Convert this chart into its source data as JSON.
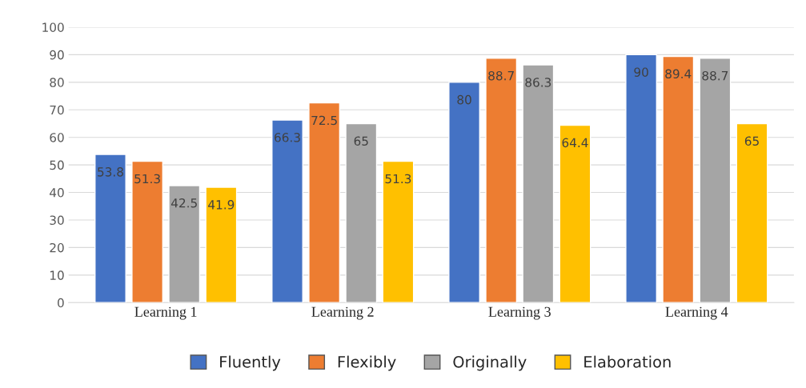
{
  "chart_data": {
    "type": "bar",
    "categories": [
      "Learning 1",
      "Learning 2",
      "Learning 3",
      "Learning 4"
    ],
    "series": [
      {
        "name": "Fluently",
        "color": "#4472c4",
        "values": [
          53.8,
          66.3,
          80,
          90
        ]
      },
      {
        "name": "Flexibly",
        "color": "#ed7d31",
        "values": [
          51.3,
          72.5,
          88.7,
          89.4
        ]
      },
      {
        "name": "Originally",
        "color": "#a5a5a5",
        "values": [
          42.5,
          65,
          86.3,
          88.7
        ]
      },
      {
        "name": "Elaboration",
        "color": "#ffc000",
        "values": [
          41.9,
          51.3,
          64.4,
          65
        ]
      }
    ],
    "ylim": [
      0,
      100
    ],
    "yticks": [
      0,
      10,
      20,
      30,
      40,
      50,
      60,
      70,
      80,
      90,
      100
    ],
    "grid": "y",
    "legend": "bottom",
    "data_labels": true
  }
}
